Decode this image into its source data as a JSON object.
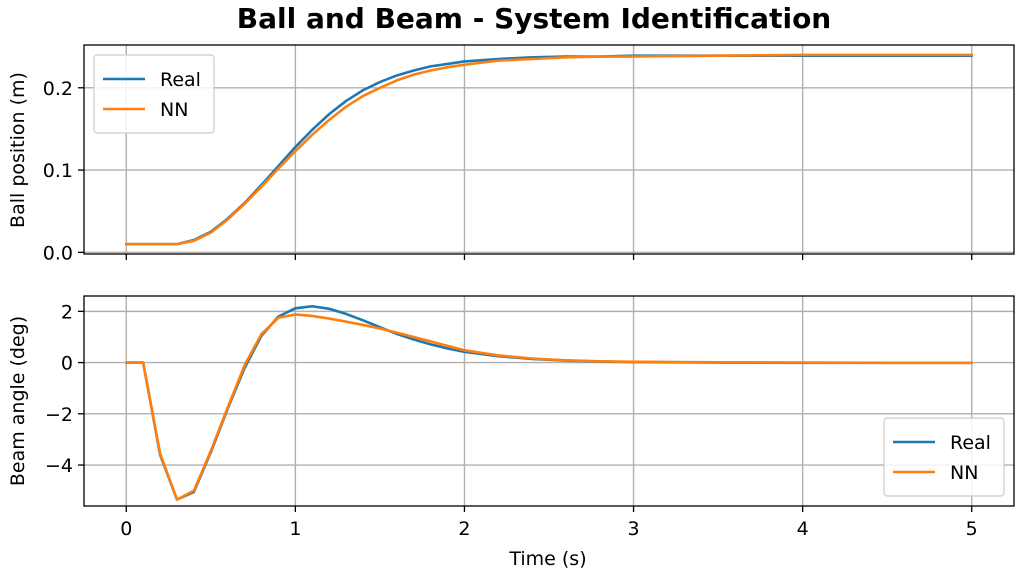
{
  "chart_data": {
    "title": "Ball and Beam - System Identification",
    "xlabel": "Time (s)",
    "xlim": [
      -0.25,
      5.25
    ],
    "xticks": [
      0,
      1,
      2,
      3,
      4,
      5
    ],
    "xtick_labels": [
      "0",
      "1",
      "2",
      "3",
      "4",
      "5"
    ],
    "grid": true,
    "colors": {
      "Real": "#1f77b4",
      "NN": "#ff7f0e"
    },
    "subplots": [
      {
        "type": "line",
        "ylabel": "Ball position (m)",
        "ylim": [
          -0.002,
          0.252
        ],
        "yticks": [
          0.0,
          0.1,
          0.2
        ],
        "ytick_labels": [
          "0.0",
          "0.1",
          "0.2"
        ],
        "show_xtick_labels": false,
        "legend_position": "upper-left",
        "series": [
          {
            "name": "Real",
            "x": [
              0,
              0.1,
              0.2,
              0.3,
              0.4,
              0.5,
              0.6,
              0.7,
              0.8,
              0.9,
              1.0,
              1.1,
              1.2,
              1.3,
              1.4,
              1.5,
              1.6,
              1.7,
              1.8,
              1.9,
              2.0,
              2.2,
              2.4,
              2.6,
              2.8,
              3.0,
              3.5,
              4.0,
              4.5,
              5.0
            ],
            "y": [
              0.01,
              0.01,
              0.01,
              0.01,
              0.015,
              0.025,
              0.041,
              0.06,
              0.082,
              0.105,
              0.128,
              0.149,
              0.168,
              0.184,
              0.197,
              0.207,
              0.215,
              0.221,
              0.226,
              0.229,
              0.232,
              0.235,
              0.237,
              0.238,
              0.238,
              0.239,
              0.239,
              0.239,
              0.239,
              0.239
            ]
          },
          {
            "name": "NN",
            "x": [
              0,
              0.1,
              0.2,
              0.3,
              0.4,
              0.5,
              0.6,
              0.7,
              0.8,
              0.9,
              1.0,
              1.1,
              1.2,
              1.3,
              1.4,
              1.5,
              1.6,
              1.7,
              1.8,
              1.9,
              2.0,
              2.2,
              2.4,
              2.6,
              2.8,
              3.0,
              3.5,
              4.0,
              4.5,
              5.0
            ],
            "y": [
              0.01,
              0.01,
              0.01,
              0.01,
              0.014,
              0.024,
              0.04,
              0.059,
              0.08,
              0.102,
              0.123,
              0.143,
              0.161,
              0.177,
              0.19,
              0.2,
              0.209,
              0.216,
              0.221,
              0.225,
              0.228,
              0.233,
              0.235,
              0.237,
              0.238,
              0.238,
              0.239,
              0.24,
              0.24,
              0.24
            ]
          }
        ]
      },
      {
        "type": "line",
        "ylabel": "Beam angle (deg)",
        "ylim": [
          -5.6,
          2.6
        ],
        "yticks": [
          2,
          0,
          -2,
          -4
        ],
        "ytick_labels": [
          "2",
          "0",
          "−2",
          "−4"
        ],
        "show_xtick_labels": true,
        "legend_position": "lower-right",
        "series": [
          {
            "name": "Real",
            "x": [
              0,
              0.1,
              0.2,
              0.3,
              0.4,
              0.5,
              0.6,
              0.7,
              0.8,
              0.9,
              1.0,
              1.1,
              1.2,
              1.3,
              1.4,
              1.5,
              1.6,
              1.7,
              1.8,
              1.9,
              2.0,
              2.2,
              2.4,
              2.6,
              2.8,
              3.0,
              3.5,
              4.0,
              4.5,
              5.0
            ],
            "y": [
              0,
              0,
              -3.6,
              -5.35,
              -5.05,
              -3.5,
              -1.8,
              -0.2,
              1.05,
              1.8,
              2.12,
              2.2,
              2.1,
              1.9,
              1.65,
              1.38,
              1.12,
              0.9,
              0.71,
              0.55,
              0.42,
              0.25,
              0.14,
              0.08,
              0.04,
              0.02,
              0.0,
              -0.01,
              -0.01,
              -0.01
            ]
          },
          {
            "name": "NN",
            "x": [
              0,
              0.1,
              0.2,
              0.3,
              0.4,
              0.5,
              0.6,
              0.7,
              0.8,
              0.9,
              1.0,
              1.1,
              1.2,
              1.3,
              1.4,
              1.5,
              1.6,
              1.7,
              1.8,
              1.9,
              2.0,
              2.2,
              2.4,
              2.6,
              2.8,
              3.0,
              3.5,
              4.0,
              4.5,
              5.0
            ],
            "y": [
              0,
              0,
              -3.55,
              -5.35,
              -5.0,
              -3.45,
              -1.75,
              -0.1,
              1.12,
              1.75,
              1.88,
              1.82,
              1.72,
              1.6,
              1.47,
              1.33,
              1.17,
              1.0,
              0.83,
              0.65,
              0.48,
              0.28,
              0.16,
              0.09,
              0.05,
              0.03,
              0.01,
              0.0,
              -0.01,
              -0.01
            ]
          }
        ]
      }
    ]
  }
}
